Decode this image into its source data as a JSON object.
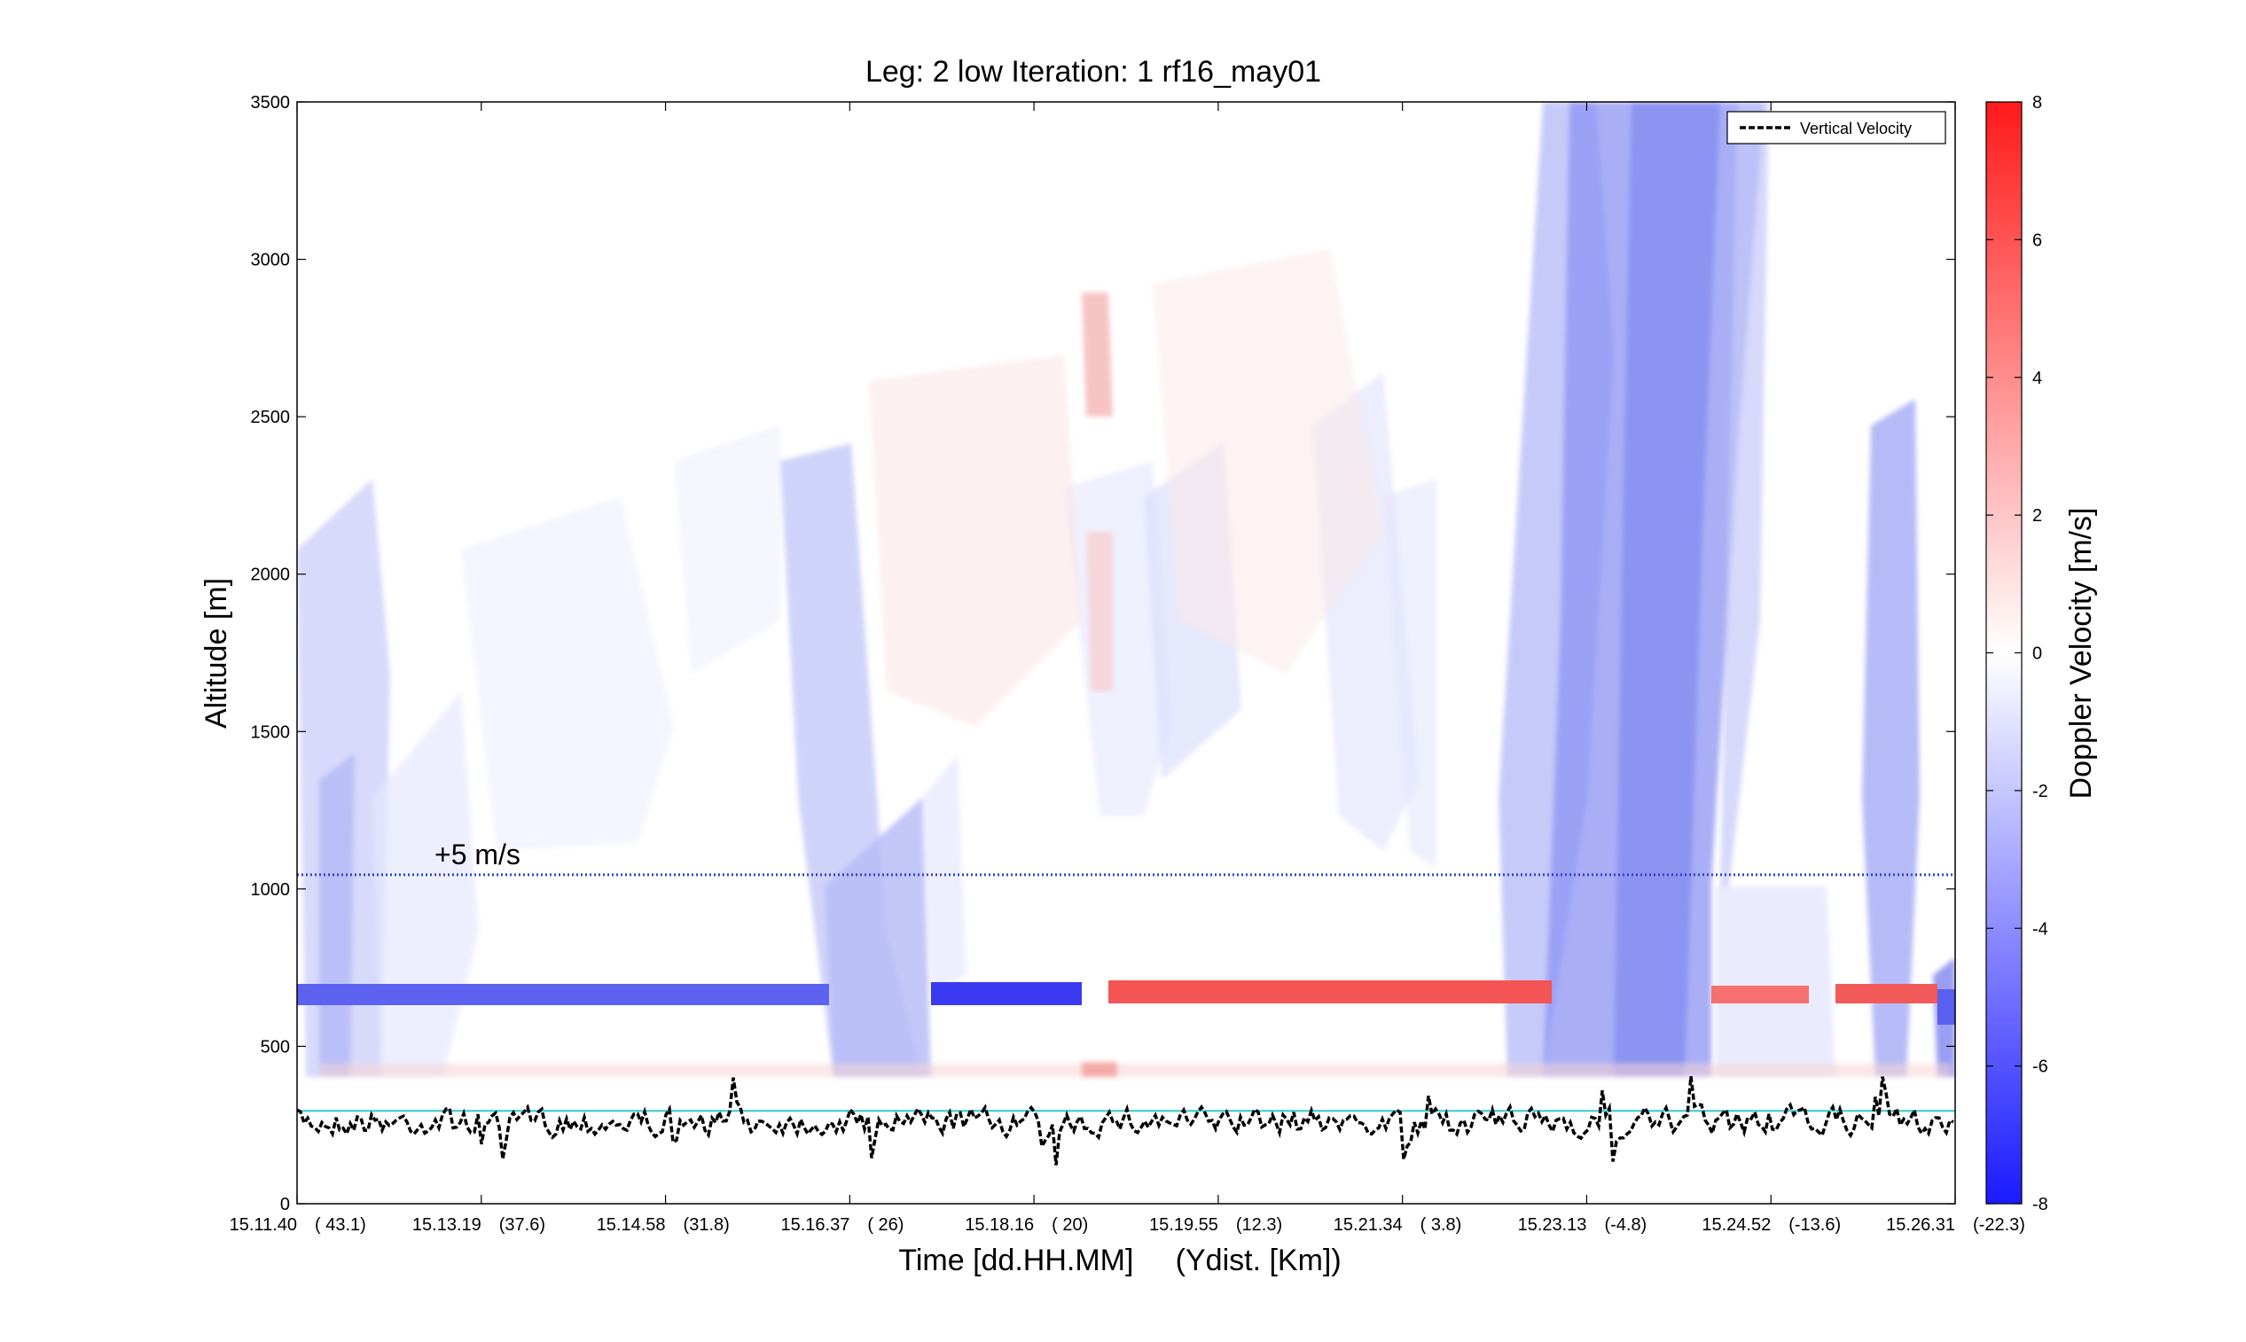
{
  "chart_data": {
    "type": "heatmap",
    "title": "Leg: 2 low Iteration: 1  rf16_may01",
    "xlabel": "Time [dd.HH.MM]     (Ydist. [Km])",
    "ylabel": "Altitude [m]",
    "ylim": [
      0,
      3500
    ],
    "y_ticks": [
      0,
      500,
      1000,
      1500,
      2000,
      2500,
      3000,
      3500
    ],
    "x_ticks": [
      {
        "time": "15.11.40",
        "ydist": "( 43.1)"
      },
      {
        "time": "15.13.19",
        "ydist": "(37.6)"
      },
      {
        "time": "15.14.58",
        "ydist": "(31.8)"
      },
      {
        "time": "15.16.37",
        "ydist": "(  26)"
      },
      {
        "time": "15.18.16",
        "ydist": "(  20)"
      },
      {
        "time": "15.19.55",
        "ydist": "(12.3)"
      },
      {
        "time": "15.21.34",
        "ydist": "( 3.8)"
      },
      {
        "time": "15.23.13",
        "ydist": "(-4.8)"
      },
      {
        "time": "15.24.52",
        "ydist": "(-13.6)"
      },
      {
        "time": "15.26.31",
        "ydist": "(-22.3)"
      }
    ],
    "colorbar": {
      "label": "Doppler Velocity [m/s]",
      "range": [
        -8,
        8
      ],
      "ticks": [
        -8,
        -6,
        -4,
        -2,
        0,
        2,
        4,
        6,
        8
      ],
      "min_color": "#1a1aff",
      "mid_color": "#ffffff",
      "max_color": "#ff1a1a"
    },
    "legend": {
      "entries": [
        "Vertical Velocity"
      ],
      "position": "top-right"
    },
    "annotation": {
      "text": "+5 m/s",
      "altitude": 1045
    },
    "reference_lines": {
      "cyan_altitude": 295,
      "dotted_blue_altitude": 1045
    },
    "colors": {
      "cyan_line": "#33cccc",
      "dotted_line": "#3344cc",
      "vertical_velocity": "#000000"
    }
  }
}
